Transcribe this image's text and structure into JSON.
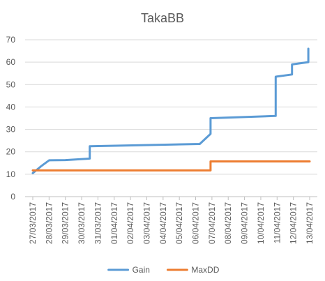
{
  "chart_data": {
    "type": "line",
    "title": "TakaBB",
    "xlabel": "",
    "ylabel": "",
    "ylim": [
      0,
      70
    ],
    "yticks": [
      0,
      10,
      20,
      30,
      40,
      50,
      60,
      70
    ],
    "grid": true,
    "legend_position": "bottom",
    "x_labels": [
      "27/03/2017",
      "28/03/2017",
      "29/03/2017",
      "30/03/2017",
      "31/03/2017",
      "01/04/2017",
      "02/04/2017",
      "03/04/2017",
      "04/04/2017",
      "05/04/2017",
      "06/04/2017",
      "07/04/2017",
      "08/04/2017",
      "09/04/2017",
      "10/04/2017",
      "11/04/2017",
      "12/04/2017",
      "13/04/2017"
    ],
    "x_range": [
      "27/03/2017",
      "13/04/2017"
    ],
    "series": [
      {
        "name": "Gain",
        "color": "#5B9BD5",
        "points": [
          {
            "x": "27/03/2017",
            "y": 10.5
          },
          {
            "x": "27/03/2017 12:00",
            "y": 13.5
          },
          {
            "x": "28/03/2017",
            "y": 16.2
          },
          {
            "x": "29/03/2017",
            "y": 16.3
          },
          {
            "x": "30/03/2017 12:00",
            "y": 17.0
          },
          {
            "x": "30/03/2017 12:00",
            "y": 22.5
          },
          {
            "x": "06/04/2017 06:00",
            "y": 23.5
          },
          {
            "x": "06/04/2017 22:00",
            "y": 28.0
          },
          {
            "x": "06/04/2017 22:00",
            "y": 35.0
          },
          {
            "x": "10/04/2017 22:00",
            "y": 36.0
          },
          {
            "x": "10/04/2017 22:00",
            "y": 53.5
          },
          {
            "x": "11/04/2017 22:00",
            "y": 54.5
          },
          {
            "x": "11/04/2017 22:00",
            "y": 59.0
          },
          {
            "x": "12/04/2017 22:00",
            "y": 60.0
          },
          {
            "x": "12/04/2017 22:00",
            "y": 66.0
          }
        ]
      },
      {
        "name": "MaxDD",
        "color": "#ED7D31",
        "points": [
          {
            "x": "27/03/2017",
            "y": 11.7
          },
          {
            "x": "06/04/2017 22:00",
            "y": 11.7
          },
          {
            "x": "06/04/2017 22:00",
            "y": 15.7
          },
          {
            "x": "13/04/2017",
            "y": 15.7
          }
        ]
      }
    ]
  }
}
